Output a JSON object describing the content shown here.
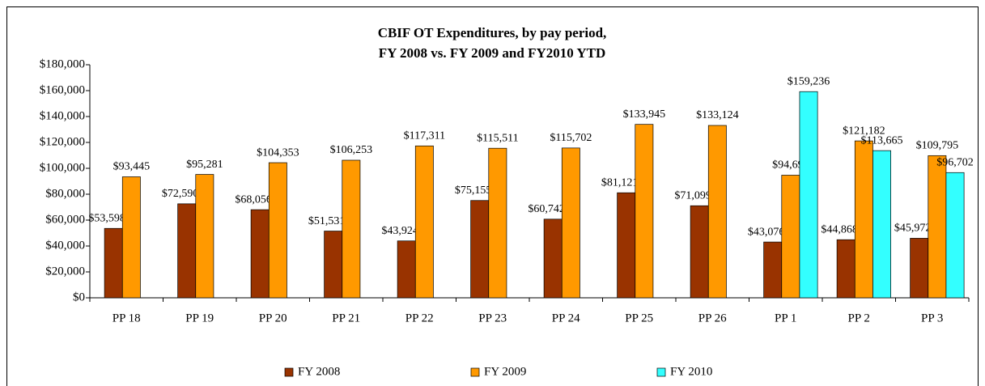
{
  "chart_data": {
    "type": "bar",
    "title": "CBIF OT Expenditures, by pay period,",
    "subtitle": "FY 2008 vs. FY 2009 and FY2010 YTD",
    "categories": [
      "PP 18",
      "PP 19",
      "PP 20",
      "PP 21",
      "PP 22",
      "PP 23",
      "PP 24",
      "PP 25",
      "PP 26",
      "PP 1",
      "PP 2",
      "PP 3"
    ],
    "series": [
      {
        "name": "FY 2008",
        "color": "#993300",
        "values": [
          53598,
          72590,
          68056,
          51531,
          43924,
          75155,
          60742,
          81121,
          71099,
          43076,
          44868,
          45972
        ],
        "value_labels": [
          "$53,598",
          "$72,590",
          "$68,056",
          "$51,531",
          "$43,924",
          "$75,155",
          "$60,742",
          "$81,121",
          "$71,099",
          "$43,076",
          "$44,868",
          "$45,972"
        ]
      },
      {
        "name": "FY 2009",
        "color": "#ff9900",
        "values": [
          93445,
          95281,
          104353,
          106253,
          117311,
          115511,
          115702,
          133945,
          133124,
          94690,
          121182,
          109795
        ],
        "value_labels": [
          "$93,445",
          "$95,281",
          "$104,353",
          "$106,253",
          "$117,311",
          "$115,511",
          "$115,702",
          "$133,945",
          "$133,124",
          "$94,690",
          "$121,182",
          "$109,795"
        ]
      },
      {
        "name": "FY 2010",
        "color": "#33ffff",
        "values": [
          null,
          null,
          null,
          null,
          null,
          null,
          null,
          null,
          null,
          159236,
          113665,
          96702
        ],
        "value_labels": [
          null,
          null,
          null,
          null,
          null,
          null,
          null,
          null,
          null,
          "$159,236",
          "$113,665",
          "$96,702"
        ]
      }
    ],
    "ylim": [
      0,
      180000
    ],
    "yticks": [
      {
        "value": 0,
        "label": "$0"
      },
      {
        "value": 20000,
        "label": "$20,000"
      },
      {
        "value": 40000,
        "label": "$40,000"
      },
      {
        "value": 60000,
        "label": "$60,000"
      },
      {
        "value": 80000,
        "label": "$80,000"
      },
      {
        "value": 100000,
        "label": "$100,000"
      },
      {
        "value": 120000,
        "label": "$120,000"
      },
      {
        "value": 140000,
        "label": "$140,000"
      },
      {
        "value": 160000,
        "label": "$160,000"
      },
      {
        "value": 180000,
        "label": "$180,000"
      }
    ],
    "grid": false,
    "legend": "bottom"
  }
}
